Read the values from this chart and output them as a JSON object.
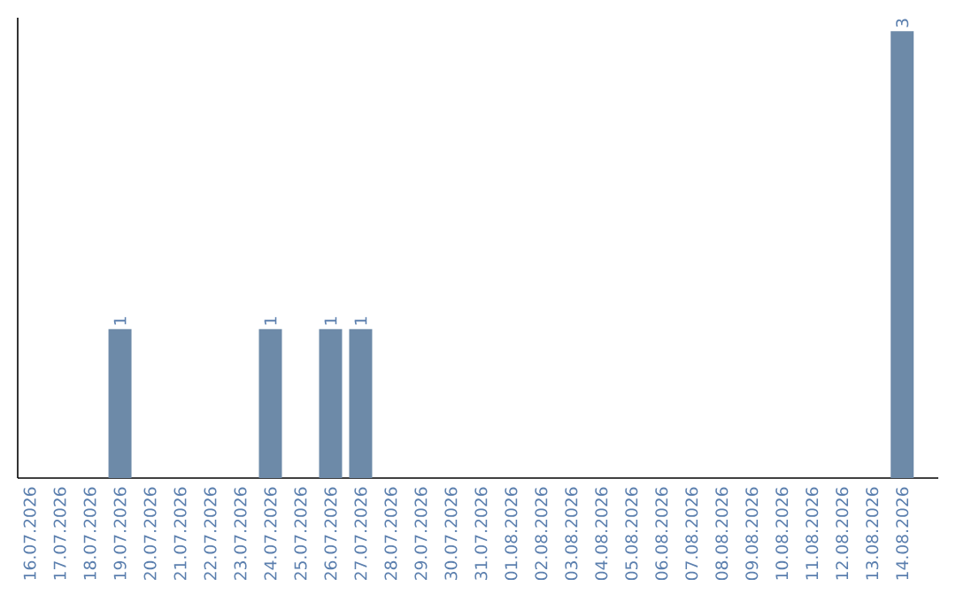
{
  "chart_data": {
    "type": "bar",
    "categories": [
      "16.07.2026",
      "17.07.2026",
      "18.07.2026",
      "19.07.2026",
      "20.07.2026",
      "21.07.2026",
      "22.07.2026",
      "23.07.2026",
      "24.07.2026",
      "25.07.2026",
      "26.07.2026",
      "27.07.2026",
      "28.07.2026",
      "29.07.2026",
      "30.07.2026",
      "31.07.2026",
      "01.08.2026",
      "02.08.2026",
      "03.08.2026",
      "04.08.2026",
      "05.08.2026",
      "06.08.2026",
      "07.08.2026",
      "08.08.2026",
      "09.08.2026",
      "10.08.2026",
      "11.08.2026",
      "12.08.2026",
      "13.08.2026",
      "14.08.2026"
    ],
    "values": [
      0,
      0,
      0,
      1,
      0,
      0,
      0,
      0,
      1,
      0,
      1,
      1,
      0,
      0,
      0,
      0,
      0,
      0,
      0,
      0,
      0,
      0,
      0,
      0,
      0,
      0,
      0,
      0,
      0,
      3
    ],
    "value_labels": [
      null,
      null,
      null,
      "1",
      null,
      null,
      null,
      null,
      "1",
      null,
      "1",
      "1",
      null,
      null,
      null,
      null,
      null,
      null,
      null,
      null,
      null,
      null,
      null,
      null,
      null,
      null,
      null,
      null,
      null,
      "3"
    ],
    "color": "#6d8aa8",
    "tick_labels": "x"
  }
}
